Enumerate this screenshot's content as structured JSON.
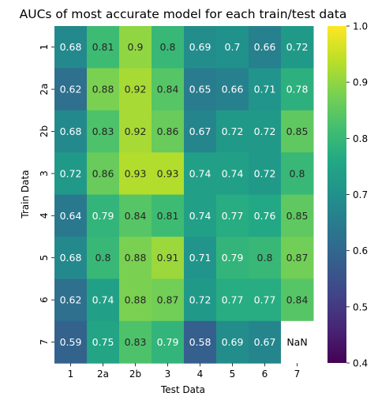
{
  "chart_data": {
    "type": "heatmap",
    "title": "AUCs of most accurate model for each train/test data",
    "xlabel": "Test Data",
    "ylabel": "Train Data",
    "x_categories": [
      "1",
      "2a",
      "2b",
      "3",
      "4",
      "5",
      "6",
      "7"
    ],
    "y_categories": [
      "1",
      "2a",
      "2b",
      "3",
      "4",
      "5",
      "6",
      "7"
    ],
    "values": [
      [
        0.68,
        0.81,
        0.9,
        0.8,
        0.69,
        0.7,
        0.66,
        0.72
      ],
      [
        0.62,
        0.88,
        0.92,
        0.84,
        0.65,
        0.66,
        0.71,
        0.78
      ],
      [
        0.68,
        0.83,
        0.92,
        0.86,
        0.67,
        0.72,
        0.72,
        0.85
      ],
      [
        0.72,
        0.86,
        0.93,
        0.93,
        0.74,
        0.74,
        0.72,
        0.8
      ],
      [
        0.64,
        0.79,
        0.84,
        0.81,
        0.74,
        0.77,
        0.76,
        0.85
      ],
      [
        0.68,
        0.8,
        0.88,
        0.91,
        0.71,
        0.79,
        0.8,
        0.87
      ],
      [
        0.62,
        0.74,
        0.88,
        0.87,
        0.72,
        0.77,
        0.77,
        0.84
      ],
      [
        0.59,
        0.75,
        0.83,
        0.79,
        0.58,
        0.69,
        0.67,
        null
      ]
    ],
    "cell_labels": [
      [
        "0.68",
        "0.81",
        "0.9",
        "0.8",
        "0.69",
        "0.7",
        "0.66",
        "0.72"
      ],
      [
        "0.62",
        "0.88",
        "0.92",
        "0.84",
        "0.65",
        "0.66",
        "0.71",
        "0.78"
      ],
      [
        "0.68",
        "0.83",
        "0.92",
        "0.86",
        "0.67",
        "0.72",
        "0.72",
        "0.85"
      ],
      [
        "0.72",
        "0.86",
        "0.93",
        "0.93",
        "0.74",
        "0.74",
        "0.72",
        "0.8"
      ],
      [
        "0.64",
        "0.79",
        "0.84",
        "0.81",
        "0.74",
        "0.77",
        "0.76",
        "0.85"
      ],
      [
        "0.68",
        "0.8",
        "0.88",
        "0.91",
        "0.71",
        "0.79",
        "0.8",
        "0.87"
      ],
      [
        "0.62",
        "0.74",
        "0.88",
        "0.87",
        "0.72",
        "0.77",
        "0.77",
        "0.84"
      ],
      [
        "0.59",
        "0.75",
        "0.83",
        "0.79",
        "0.58",
        "0.69",
        "0.67",
        "NaN"
      ]
    ],
    "colorbar": {
      "colormap": "viridis",
      "range": [
        0.4,
        1.0
      ],
      "ticks": [
        "0.4",
        "0.5",
        "0.6",
        "0.7",
        "0.8",
        "0.9",
        "1.0"
      ]
    }
  }
}
